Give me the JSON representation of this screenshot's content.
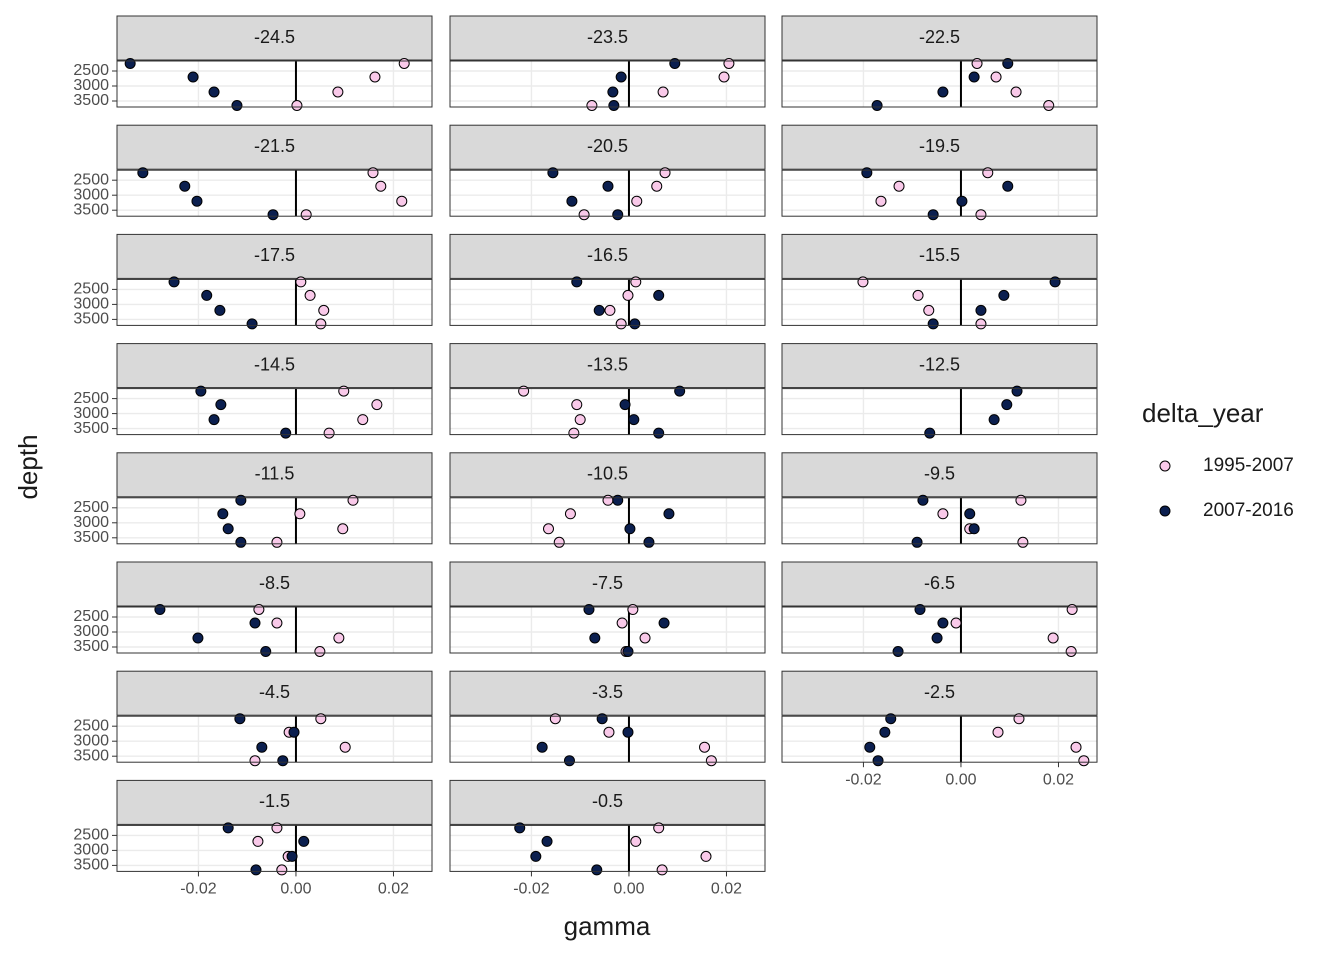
{
  "chart_data": {
    "type": "scatter",
    "x_label": "gamma",
    "y_label": "depth",
    "legend_title": "delta_year",
    "legend": [
      {
        "name": "1995-2007",
        "color": "#f9c9e9"
      },
      {
        "name": "2007-2016",
        "color": "#0b1f4f"
      }
    ],
    "xlim": [
      -0.0367,
      0.0279
    ],
    "xticks": [
      {
        "value": -0.02,
        "label": "-0.02"
      },
      {
        "value": 0,
        "label": "0.00"
      },
      {
        "value": 0.02,
        "label": "0.02"
      }
    ],
    "ylim": [
      3700,
      2167
    ],
    "yticks": [
      2500,
      3000,
      3500
    ],
    "reference_line_x": 0,
    "grid": true,
    "y": [
      2250,
      2700,
      3200,
      3650
    ],
    "panels": [
      {
        "title": "-24.5",
        "series": [
          [
            0.0222,
            0.0162,
            0.0086,
            0.0002
          ],
          [
            -0.034,
            -0.0211,
            -0.0168,
            -0.0121
          ]
        ]
      },
      {
        "title": "-23.5",
        "series": [
          [
            0.0205,
            0.0195,
            0.007,
            -0.0076
          ],
          [
            0.0094,
            -0.0016,
            -0.0033,
            -0.0031
          ]
        ]
      },
      {
        "title": "-22.5",
        "series": [
          [
            0.0033,
            0.0072,
            0.0113,
            0.018
          ],
          [
            0.0096,
            0.0027,
            -0.0037,
            -0.0172
          ]
        ]
      },
      {
        "title": "-21.5",
        "series": [
          [
            0.0158,
            0.0174,
            0.0217,
            0.0021
          ],
          [
            -0.0314,
            -0.0228,
            -0.0203,
            -0.0047
          ]
        ]
      },
      {
        "title": "-20.5",
        "series": [
          [
            0.0074,
            0.0057,
            0.0016,
            -0.0092
          ],
          [
            -0.0156,
            -0.0043,
            -0.0117,
            -0.0023
          ]
        ]
      },
      {
        "title": "-19.5",
        "series": [
          [
            0.0055,
            -0.0127,
            -0.0164,
            0.0041
          ],
          [
            -0.0193,
            0.0096,
            0.0002,
            -0.0057
          ]
        ]
      },
      {
        "title": "-17.5",
        "series": [
          [
            0.001,
            0.0029,
            0.0057,
            0.0051
          ],
          [
            -0.025,
            -0.0183,
            -0.0156,
            -0.009
          ]
        ]
      },
      {
        "title": "-16.5",
        "series": [
          [
            0.0014,
            -0.0002,
            -0.0039,
            -0.0016
          ],
          [
            -0.0107,
            0.0061,
            -0.0061,
            0.0012
          ]
        ]
      },
      {
        "title": "-15.5",
        "series": [
          [
            -0.0201,
            -0.0088,
            -0.0066,
            0.0041
          ],
          [
            0.0193,
            0.0088,
            0.0041,
            -0.0057
          ]
        ]
      },
      {
        "title": "-14.5",
        "series": [
          [
            0.0098,
            0.0166,
            0.0137,
            0.0068
          ],
          [
            -0.0195,
            -0.0154,
            -0.0168,
            -0.0021
          ]
        ]
      },
      {
        "title": "-13.5",
        "series": [
          [
            -0.0216,
            -0.0107,
            -0.01,
            -0.0113
          ],
          [
            0.0104,
            -0.0008,
            0.001,
            0.0061
          ]
        ]
      },
      {
        "title": "-12.5",
        "series": [
          [
            null,
            null,
            null,
            null
          ],
          [
            0.0115,
            0.0094,
            0.0068,
            -0.0064
          ]
        ]
      },
      {
        "title": "-11.5",
        "series": [
          [
            0.0117,
            0.0008,
            0.0096,
            -0.0039
          ],
          [
            -0.0113,
            -0.015,
            -0.0139,
            -0.0113
          ]
        ]
      },
      {
        "title": "-10.5",
        "series": [
          [
            -0.0043,
            -0.012,
            -0.0165,
            -0.0143
          ],
          [
            -0.0023,
            0.0082,
            0.0002,
            0.0041
          ]
        ]
      },
      {
        "title": "-9.5",
        "series": [
          [
            0.0123,
            -0.0037,
            0.0018,
            0.0127
          ],
          [
            -0.0078,
            0.0018,
            0.0027,
            -0.009
          ]
        ]
      },
      {
        "title": "-8.5",
        "series": [
          [
            -0.0076,
            -0.0039,
            0.0088,
            0.0049
          ],
          [
            -0.0279,
            -0.0084,
            -0.0201,
            -0.0062
          ]
        ]
      },
      {
        "title": "-7.5",
        "series": [
          [
            0.0008,
            -0.0014,
            0.0033,
            -0.0006
          ],
          [
            -0.0082,
            0.0072,
            -0.007,
            -0.0002
          ]
        ]
      },
      {
        "title": "-6.5",
        "series": [
          [
            0.0228,
            -0.001,
            0.0189,
            0.0226
          ],
          [
            -0.0084,
            -0.0037,
            -0.0049,
            -0.0129
          ]
        ]
      },
      {
        "title": "-4.5",
        "series": [
          [
            0.0051,
            -0.0014,
            0.0101,
            -0.0084
          ],
          [
            -0.0115,
            -0.0004,
            -0.007,
            -0.0027
          ]
        ]
      },
      {
        "title": "-3.5",
        "series": [
          [
            -0.0151,
            -0.0041,
            0.0155,
            0.0169
          ],
          [
            -0.0055,
            -0.0002,
            -0.0178,
            -0.0122
          ]
        ]
      },
      {
        "title": "-2.5",
        "series": [
          [
            0.0119,
            0.0076,
            0.0236,
            0.0252
          ],
          [
            -0.0144,
            -0.0156,
            -0.0187,
            -0.017
          ]
        ]
      },
      {
        "title": "-1.5",
        "series": [
          [
            -0.0039,
            -0.0078,
            -0.0016,
            -0.0029
          ],
          [
            -0.0139,
            0.0016,
            -0.0008,
            -0.0082
          ]
        ]
      },
      {
        "title": "-0.5",
        "series": [
          [
            0.0061,
            0.0014,
            0.0158,
            0.0068
          ],
          [
            -0.0224,
            -0.0168,
            -0.0191,
            -0.0066
          ]
        ]
      }
    ]
  }
}
